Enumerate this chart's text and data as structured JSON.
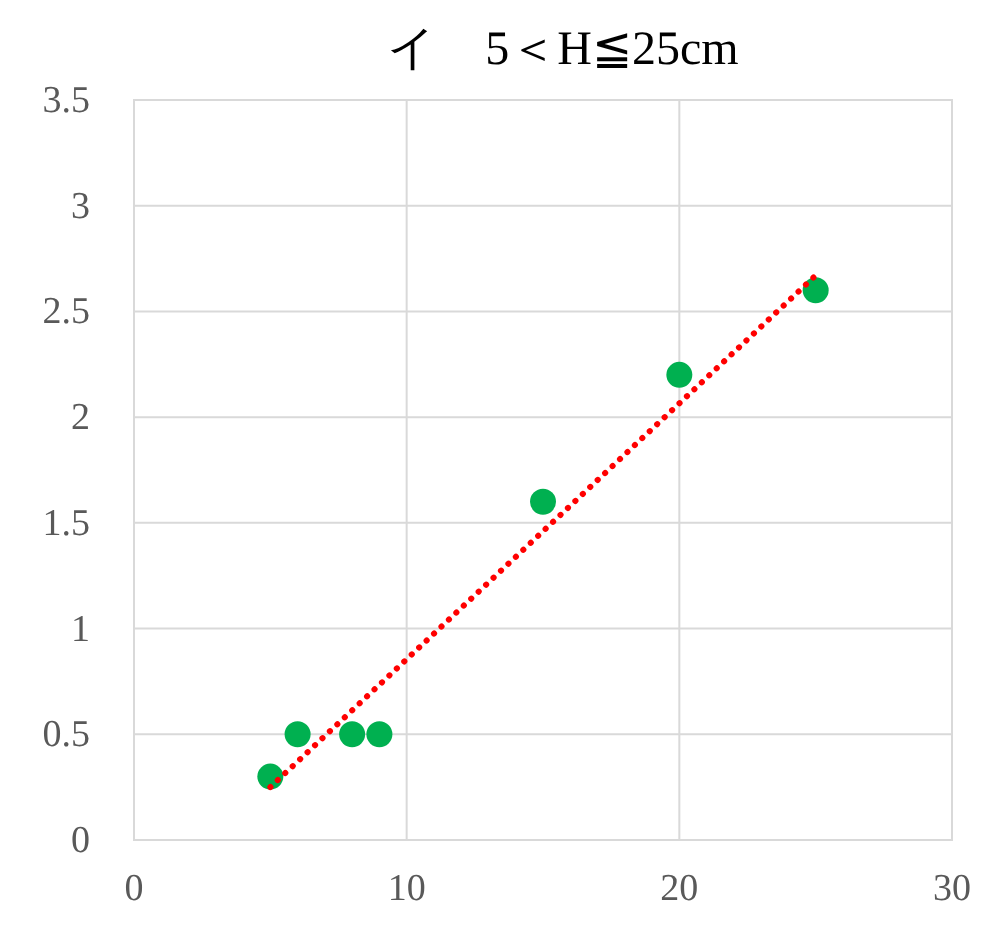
{
  "chart_data": {
    "type": "scatter",
    "title": "イ　5＜H≦25cm",
    "xlim": [
      0,
      30
    ],
    "xticks": [
      0,
      10,
      20,
      30
    ],
    "ylim": [
      0,
      3.5
    ],
    "yticks": [
      0,
      0.5,
      1,
      1.5,
      2,
      2.5,
      3,
      3.5
    ],
    "grid": true,
    "series": [
      {
        "type": "scatter",
        "marker": "circle",
        "color": "#00b050",
        "x": [
          5,
          6,
          8,
          9,
          15,
          20,
          25
        ],
        "values": [
          0.3,
          0.5,
          0.5,
          0.5,
          1.6,
          2.2,
          2.6
        ]
      },
      {
        "type": "line",
        "color": "#ff0000",
        "line_style": "dotted",
        "x": [
          5,
          25
        ],
        "values": [
          0.25,
          2.67
        ]
      }
    ]
  }
}
